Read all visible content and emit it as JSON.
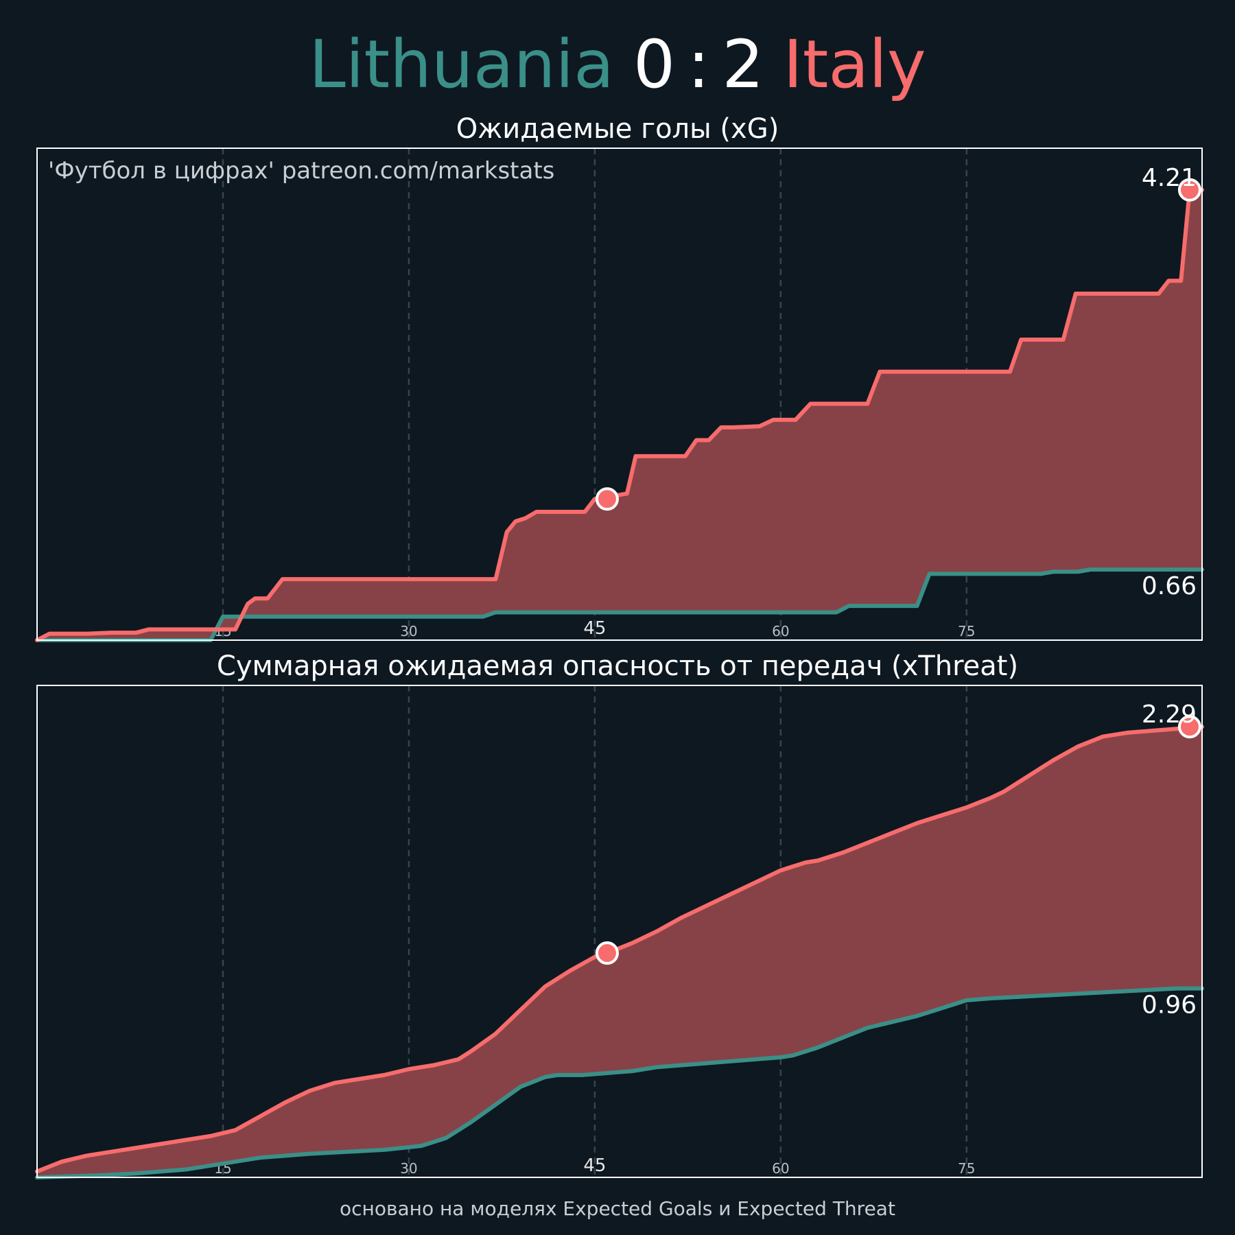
{
  "header": {
    "home_team": "Lithuania",
    "home_score": "0",
    "separator": ":",
    "away_score": "2",
    "away_team": "Italy"
  },
  "credit": "'Футбол в цифрах' patreon.com/markstats",
  "footnote": "основано на моделях Expected Goals и Expected Threat",
  "colors": {
    "background": "#0e1821",
    "home": "#3a9088",
    "away": "#f76c6c",
    "fill": "#874247",
    "grid": "#3a434c",
    "text": "#ffffff",
    "muted": "#c9ced3"
  },
  "chart_data": [
    {
      "type": "area",
      "title": "Ожидаемые голы (xG)",
      "xlabel": "",
      "ylabel": "",
      "xlim": [
        0,
        94
      ],
      "ylim": [
        0,
        4.6
      ],
      "x_ticks": [
        {
          "value": 15,
          "label": "15"
        },
        {
          "value": 30,
          "label": "30"
        },
        {
          "value": 45,
          "label": "45"
        },
        {
          "value": 60,
          "label": "60"
        },
        {
          "value": 75,
          "label": "75"
        }
      ],
      "grid": "vertical dashed",
      "end_labels": {
        "away": "4.21",
        "home": "0.66"
      },
      "series": [
        {
          "name": "Italy",
          "color": "#f76c6c",
          "x": [
            0,
            1,
            4,
            6,
            8,
            9,
            14,
            15.5,
            16,
            17,
            17.6,
            18.6,
            19.8,
            37,
            37.9,
            38.6,
            39.4,
            40.3,
            41.3,
            44.2,
            45,
            46,
            47.6,
            48.3,
            52.3,
            53.2,
            54.2,
            55.2,
            56.2,
            58.3,
            59.4,
            61.2,
            62.4,
            67,
            68,
            78.5,
            79.4,
            82.8,
            83.8,
            90.5,
            91.3,
            92.3,
            93,
            94
          ],
          "y": [
            0,
            0.06,
            0.06,
            0.07,
            0.07,
            0.1,
            0.1,
            0.1,
            0.1,
            0.34,
            0.39,
            0.39,
            0.57,
            0.57,
            1.01,
            1.11,
            1.14,
            1.2,
            1.2,
            1.2,
            1.32,
            1.34,
            1.37,
            1.72,
            1.72,
            1.87,
            1.87,
            1.99,
            1.99,
            2.0,
            2.06,
            2.06,
            2.21,
            2.21,
            2.51,
            2.51,
            2.81,
            2.81,
            3.24,
            3.24,
            3.36,
            3.36,
            4.21,
            4.21
          ]
        },
        {
          "name": "Lithuania",
          "color": "#3a9088",
          "x": [
            0,
            14,
            15,
            16,
            36,
            37,
            64.5,
            65.5,
            71,
            72,
            81,
            82,
            84,
            85,
            94
          ],
          "y": [
            0,
            0,
            0.22,
            0.22,
            0.22,
            0.26,
            0.26,
            0.32,
            0.32,
            0.62,
            0.62,
            0.64,
            0.64,
            0.66,
            0.66
          ]
        }
      ],
      "markers": [
        {
          "series": "Italy",
          "x": 46,
          "y": 1.32
        },
        {
          "series": "Italy",
          "x": 93,
          "y": 4.21
        }
      ]
    },
    {
      "type": "area",
      "title": "Суммарная ожидаемая опасность от передач (xThreat)",
      "xlabel": "",
      "ylabel": "",
      "xlim": [
        0,
        94
      ],
      "ylim": [
        0,
        2.5
      ],
      "x_ticks": [
        {
          "value": 15,
          "label": "15"
        },
        {
          "value": 30,
          "label": "30"
        },
        {
          "value": 45,
          "label": "45"
        },
        {
          "value": 60,
          "label": "60"
        },
        {
          "value": 75,
          "label": "75"
        }
      ],
      "grid": "vertical dashed",
      "end_labels": {
        "away": "2.29",
        "home": "0.96"
      },
      "series": [
        {
          "name": "Italy",
          "color": "#f76c6c",
          "x": [
            0,
            2,
            4,
            6,
            8,
            10,
            12,
            14,
            16,
            18,
            20,
            22,
            24,
            26,
            28,
            30,
            32,
            34,
            35,
            37,
            39,
            41,
            43,
            45,
            46,
            48,
            50,
            52,
            54,
            56,
            58,
            60,
            62,
            63,
            65,
            67,
            69,
            71,
            73,
            75,
            77,
            78,
            80,
            82,
            84,
            86,
            88,
            90,
            92,
            94
          ],
          "y": [
            0.03,
            0.08,
            0.11,
            0.13,
            0.15,
            0.17,
            0.19,
            0.21,
            0.24,
            0.31,
            0.38,
            0.44,
            0.48,
            0.5,
            0.52,
            0.55,
            0.57,
            0.6,
            0.64,
            0.73,
            0.85,
            0.97,
            1.05,
            1.12,
            1.14,
            1.19,
            1.25,
            1.32,
            1.38,
            1.44,
            1.5,
            1.56,
            1.6,
            1.61,
            1.65,
            1.7,
            1.75,
            1.8,
            1.84,
            1.88,
            1.93,
            1.96,
            2.04,
            2.12,
            2.19,
            2.24,
            2.26,
            2.27,
            2.28,
            2.29
          ]
        },
        {
          "name": "Lithuania",
          "color": "#3a9088",
          "x": [
            0,
            5,
            8,
            10,
            12,
            14,
            16,
            18,
            20,
            22,
            25,
            28,
            31,
            33,
            35,
            37,
            39,
            41,
            42,
            44,
            46,
            48,
            50,
            52,
            54,
            56,
            58,
            60,
            61,
            63,
            65,
            67,
            69,
            71,
            73,
            75,
            77,
            80,
            83,
            86,
            89,
            92,
            94
          ],
          "y": [
            0,
            0.01,
            0.02,
            0.03,
            0.04,
            0.06,
            0.08,
            0.1,
            0.11,
            0.12,
            0.13,
            0.14,
            0.16,
            0.2,
            0.28,
            0.37,
            0.46,
            0.51,
            0.52,
            0.52,
            0.53,
            0.54,
            0.56,
            0.57,
            0.58,
            0.59,
            0.6,
            0.61,
            0.62,
            0.66,
            0.71,
            0.76,
            0.79,
            0.82,
            0.86,
            0.9,
            0.91,
            0.92,
            0.93,
            0.94,
            0.95,
            0.96,
            0.96
          ]
        }
      ],
      "markers": [
        {
          "series": "Italy",
          "x": 46,
          "y": 1.14
        },
        {
          "series": "Italy",
          "x": 93,
          "y": 2.29
        }
      ]
    }
  ]
}
